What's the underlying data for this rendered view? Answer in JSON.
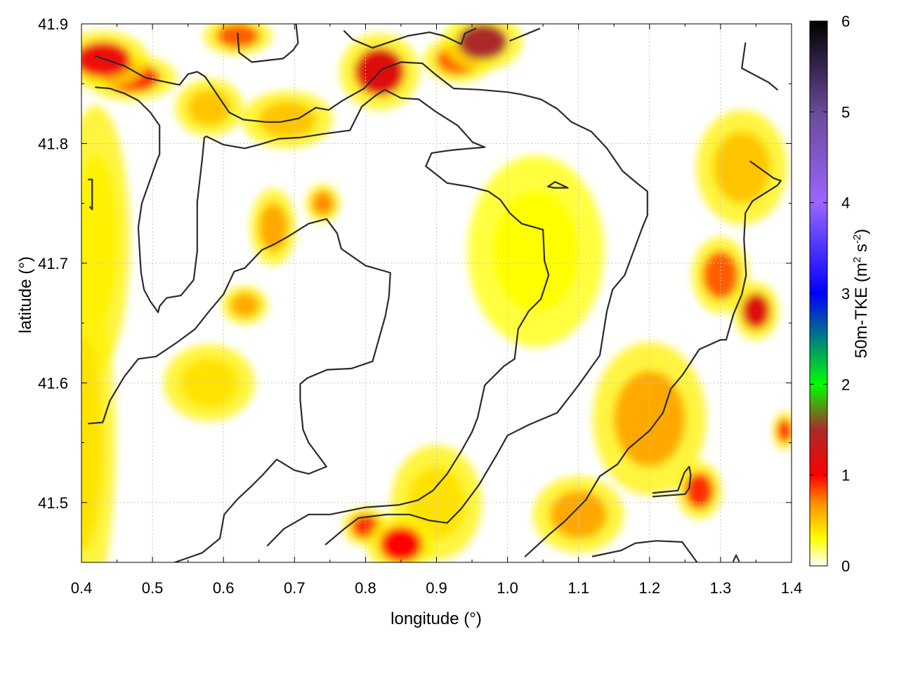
{
  "chart_data": {
    "type": "heatmap",
    "title": "",
    "xlabel": "longitude (°)",
    "ylabel": "latitude (°)",
    "xlim": [
      0.4,
      1.4
    ],
    "ylim": [
      41.45,
      41.9
    ],
    "x_ticks": [
      "0.4",
      "0.5",
      "0.6",
      "0.7",
      "0.8",
      "0.9",
      "1.0",
      "1.1",
      "1.2",
      "1.3",
      "1.4"
    ],
    "y_ticks": [
      "41.5",
      "41.6",
      "41.7",
      "41.8",
      "41.9"
    ],
    "x_tick_values": [
      0.4,
      0.5,
      0.6,
      0.7,
      0.8,
      0.9,
      1.0,
      1.1,
      1.2,
      1.3,
      1.4
    ],
    "y_tick_values": [
      41.5,
      41.6,
      41.7,
      41.8,
      41.9
    ],
    "grid": true,
    "colorbar": {
      "label": "50m-TKE (m2 s-2)",
      "label_text": "50m-TKE (m",
      "label_sup1": "2",
      "label_mid": " s",
      "label_sup2": "-2",
      "label_end": ")",
      "range": [
        0,
        6
      ],
      "ticks": [
        "0",
        "1",
        "2",
        "3",
        "4",
        "5",
        "6"
      ],
      "tick_values": [
        0,
        1,
        2,
        3,
        4,
        5,
        6
      ],
      "colormap": [
        {
          "v": 0.0,
          "color": "#ffffff"
        },
        {
          "v": 0.3,
          "color": "#ffff00"
        },
        {
          "v": 0.7,
          "color": "#ff8c00"
        },
        {
          "v": 1.0,
          "color": "#ff0000"
        },
        {
          "v": 1.5,
          "color": "#aa2a2a"
        },
        {
          "v": 2.0,
          "color": "#00ff00"
        },
        {
          "v": 3.0,
          "color": "#0000ff"
        },
        {
          "v": 4.0,
          "color": "#9966ff"
        },
        {
          "v": 5.0,
          "color": "#6a4a9a"
        },
        {
          "v": 6.0,
          "color": "#000000"
        }
      ]
    },
    "tke_hotspots": [
      {
        "lon": 0.43,
        "lat": 41.87,
        "value": 1.1,
        "rx": 0.04,
        "ry": 0.015
      },
      {
        "lon": 0.47,
        "lat": 41.855,
        "value": 0.9,
        "rx": 0.04,
        "ry": 0.012
      },
      {
        "lon": 0.82,
        "lat": 41.86,
        "value": 1.2,
        "rx": 0.035,
        "ry": 0.02
      },
      {
        "lon": 0.965,
        "lat": 41.885,
        "value": 1.5,
        "rx": 0.035,
        "ry": 0.015
      },
      {
        "lon": 0.93,
        "lat": 41.87,
        "value": 0.8,
        "rx": 0.03,
        "ry": 0.012
      },
      {
        "lon": 0.62,
        "lat": 41.89,
        "value": 0.8,
        "rx": 0.03,
        "ry": 0.01
      },
      {
        "lon": 0.85,
        "lat": 41.465,
        "value": 1.0,
        "rx": 0.03,
        "ry": 0.015
      },
      {
        "lon": 0.8,
        "lat": 41.48,
        "value": 0.9,
        "rx": 0.02,
        "ry": 0.01
      },
      {
        "lon": 1.35,
        "lat": 41.66,
        "value": 1.2,
        "rx": 0.02,
        "ry": 0.015
      },
      {
        "lon": 1.3,
        "lat": 41.69,
        "value": 0.8,
        "rx": 0.025,
        "ry": 0.02
      },
      {
        "lon": 1.27,
        "lat": 41.51,
        "value": 0.9,
        "rx": 0.02,
        "ry": 0.015
      },
      {
        "lon": 1.39,
        "lat": 41.56,
        "value": 1.0,
        "rx": 0.01,
        "ry": 0.01
      },
      {
        "lon": 1.1,
        "lat": 41.49,
        "value": 0.6,
        "rx": 0.04,
        "ry": 0.02
      },
      {
        "lon": 1.2,
        "lat": 41.57,
        "value": 0.6,
        "rx": 0.05,
        "ry": 0.04
      },
      {
        "lon": 0.4,
        "lat": 41.55,
        "value": 0.4,
        "rx": 0.03,
        "ry": 0.09
      },
      {
        "lon": 0.42,
        "lat": 41.72,
        "value": 0.35,
        "rx": 0.03,
        "ry": 0.07
      },
      {
        "lon": 0.67,
        "lat": 41.73,
        "value": 0.6,
        "rx": 0.02,
        "ry": 0.02
      },
      {
        "lon": 0.74,
        "lat": 41.75,
        "value": 0.7,
        "rx": 0.015,
        "ry": 0.01
      },
      {
        "lon": 0.63,
        "lat": 41.665,
        "value": 0.6,
        "rx": 0.02,
        "ry": 0.01
      },
      {
        "lon": 0.69,
        "lat": 41.82,
        "value": 0.5,
        "rx": 0.04,
        "ry": 0.015
      },
      {
        "lon": 1.04,
        "lat": 41.71,
        "value": 0.3,
        "rx": 0.06,
        "ry": 0.05
      },
      {
        "lon": 1.33,
        "lat": 41.78,
        "value": 0.5,
        "rx": 0.04,
        "ry": 0.03
      },
      {
        "lon": 0.58,
        "lat": 41.83,
        "value": 0.5,
        "rx": 0.03,
        "ry": 0.015
      },
      {
        "lon": 0.58,
        "lat": 41.6,
        "value": 0.4,
        "rx": 0.04,
        "ry": 0.02
      },
      {
        "lon": 0.9,
        "lat": 41.5,
        "value": 0.4,
        "rx": 0.04,
        "ry": 0.03
      }
    ],
    "contours": [
      [
        [
          0.42,
          41.873
        ],
        [
          0.46,
          41.865
        ],
        [
          0.49,
          41.855
        ],
        [
          0.538,
          41.849
        ],
        [
          0.55,
          41.858
        ],
        [
          0.563,
          41.86
        ],
        [
          0.574,
          41.856
        ],
        [
          0.608,
          41.826
        ],
        [
          0.628,
          41.82
        ],
        [
          0.66,
          41.818
        ],
        [
          0.68,
          41.818
        ],
        [
          0.706,
          41.821
        ],
        [
          0.73,
          41.83
        ],
        [
          0.748,
          41.828
        ],
        [
          0.768,
          41.836
        ],
        [
          0.798,
          41.846
        ],
        [
          0.823,
          41.862
        ],
        [
          0.85,
          41.868
        ],
        [
          0.88,
          41.867
        ],
        [
          0.9,
          41.857
        ],
        [
          0.924,
          41.846
        ],
        [
          0.96,
          41.845
        ],
        [
          1.0,
          41.843
        ],
        [
          1.02,
          41.841
        ],
        [
          1.047,
          41.837
        ],
        [
          1.07,
          41.829
        ],
        [
          1.09,
          41.818
        ],
        [
          1.118,
          41.81
        ],
        [
          1.14,
          41.796
        ],
        [
          1.162,
          41.777
        ],
        [
          1.18,
          41.768
        ],
        [
          1.197,
          41.76
        ],
        [
          1.197,
          41.74
        ],
        [
          1.19,
          41.73
        ],
        [
          1.165,
          41.69
        ],
        [
          1.148,
          41.678
        ],
        [
          1.14,
          41.66
        ],
        [
          1.13,
          41.623
        ],
        [
          1.1,
          41.598
        ],
        [
          1.07,
          41.575
        ],
        [
          1.03,
          41.565
        ],
        [
          1.0,
          41.556
        ],
        [
          0.985,
          41.54
        ],
        [
          0.96,
          41.515
        ],
        [
          0.935,
          41.495
        ],
        [
          0.915,
          41.483
        ],
        [
          0.89,
          41.485
        ],
        [
          0.862,
          41.49
        ],
        [
          0.83,
          41.49
        ],
        [
          0.79,
          41.487
        ],
        [
          0.77,
          41.478
        ],
        [
          0.744,
          41.465
        ]
      ],
      [
        [
          0.42,
          41.847
        ],
        [
          0.44,
          41.846
        ],
        [
          0.46,
          41.842
        ],
        [
          0.48,
          41.836
        ],
        [
          0.497,
          41.826
        ],
        [
          0.51,
          41.815
        ],
        [
          0.51,
          41.791
        ],
        [
          0.507,
          41.787
        ],
        [
          0.485,
          41.75
        ],
        [
          0.48,
          41.73
        ],
        [
          0.483,
          41.7
        ],
        [
          0.484,
          41.692
        ],
        [
          0.488,
          41.678
        ],
        [
          0.497,
          41.668
        ],
        [
          0.508,
          41.659
        ],
        [
          0.51,
          41.664
        ],
        [
          0.52,
          41.671
        ],
        [
          0.54,
          41.673
        ],
        [
          0.558,
          41.686
        ],
        [
          0.563,
          41.71
        ],
        [
          0.563,
          41.751
        ],
        [
          0.57,
          41.787
        ],
        [
          0.573,
          41.805
        ],
        [
          0.576,
          41.806
        ],
        [
          0.6,
          41.799
        ],
        [
          0.63,
          41.796
        ],
        [
          0.65,
          41.799
        ],
        [
          0.678,
          41.804
        ],
        [
          0.708,
          41.805
        ],
        [
          0.74,
          41.808
        ],
        [
          0.778,
          41.811
        ],
        [
          0.795,
          41.831
        ],
        [
          0.814,
          41.84
        ],
        [
          0.827,
          41.845
        ],
        [
          0.85,
          41.838
        ],
        [
          0.875,
          41.837
        ],
        [
          0.898,
          41.827
        ],
        [
          0.93,
          41.815
        ],
        [
          0.951,
          41.801
        ],
        [
          0.968,
          41.797
        ],
        [
          0.93,
          41.795
        ],
        [
          0.915,
          41.794
        ],
        [
          0.893,
          41.792
        ],
        [
          0.885,
          41.781
        ],
        [
          0.9,
          41.774
        ],
        [
          0.915,
          41.767
        ],
        [
          0.946,
          41.764
        ],
        [
          0.973,
          41.76
        ],
        [
          0.99,
          41.753
        ],
        [
          1.003,
          41.742
        ],
        [
          1.02,
          41.733
        ],
        [
          1.05,
          41.728
        ],
        [
          1.052,
          41.702
        ],
        [
          1.058,
          41.69
        ],
        [
          1.047,
          41.67
        ],
        [
          1.03,
          41.66
        ],
        [
          1.015,
          41.645
        ],
        [
          1.01,
          41.62
        ],
        [
          0.995,
          41.614
        ],
        [
          0.968,
          41.598
        ],
        [
          0.958,
          41.571
        ],
        [
          0.95,
          41.559
        ],
        [
          0.935,
          41.543
        ],
        [
          0.915,
          41.524
        ],
        [
          0.895,
          41.51
        ],
        [
          0.874,
          41.502
        ],
        [
          0.847,
          41.498
        ],
        [
          0.8,
          41.496
        ],
        [
          0.75,
          41.49
        ],
        [
          0.72,
          41.49
        ],
        [
          0.685,
          41.478
        ],
        [
          0.662,
          41.464
        ]
      ],
      [
        [
          0.41,
          41.566
        ],
        [
          0.43,
          41.567
        ],
        [
          0.44,
          41.585
        ],
        [
          0.46,
          41.605
        ],
        [
          0.48,
          41.62
        ],
        [
          0.505,
          41.622
        ],
        [
          0.535,
          41.634
        ],
        [
          0.56,
          41.645
        ],
        [
          0.58,
          41.66
        ],
        [
          0.6,
          41.674
        ],
        [
          0.615,
          41.693
        ],
        [
          0.63,
          41.696
        ],
        [
          0.654,
          41.711
        ],
        [
          0.672,
          41.716
        ],
        [
          0.69,
          41.722
        ],
        [
          0.72,
          41.733
        ],
        [
          0.745,
          41.737
        ],
        [
          0.76,
          41.725
        ],
        [
          0.766,
          41.712
        ],
        [
          0.8,
          41.698
        ],
        [
          0.835,
          41.692
        ],
        [
          0.833,
          41.672
        ],
        [
          0.828,
          41.656
        ],
        [
          0.81,
          41.618
        ],
        [
          0.78,
          41.612
        ],
        [
          0.746,
          41.611
        ],
        [
          0.718,
          41.604
        ],
        [
          0.708,
          41.599
        ],
        [
          0.708,
          41.586
        ],
        [
          0.712,
          41.561
        ],
        [
          0.72,
          41.55
        ],
        [
          0.745,
          41.53
        ],
        [
          0.72,
          41.524
        ],
        [
          0.7,
          41.527
        ],
        [
          0.675,
          41.536
        ],
        [
          0.655,
          41.523
        ],
        [
          0.64,
          41.514
        ],
        [
          0.62,
          41.503
        ],
        [
          0.601,
          41.49
        ],
        [
          0.595,
          41.47
        ],
        [
          0.57,
          41.458
        ],
        [
          0.522,
          41.448
        ]
      ],
      [
        [
          0.412,
          41.747
        ],
        [
          0.415,
          41.745
        ],
        [
          0.415,
          41.77
        ],
        [
          0.41,
          41.77
        ]
      ],
      [
        [
          0.62,
          41.892
        ],
        [
          0.622,
          41.876
        ],
        [
          0.64,
          41.868
        ],
        [
          0.684,
          41.871
        ],
        [
          0.698,
          41.878
        ],
        [
          0.705,
          41.884
        ],
        [
          0.702,
          41.901
        ]
      ],
      [
        [
          0.77,
          41.894
        ],
        [
          0.782,
          41.887
        ],
        [
          0.81,
          41.88
        ],
        [
          0.86,
          41.89
        ],
        [
          0.89,
          41.893
        ],
        [
          0.91,
          41.89
        ],
        [
          0.935,
          41.883
        ],
        [
          0.94,
          41.892
        ],
        [
          0.955,
          41.896
        ]
      ],
      [
        [
          1.004,
          41.886
        ],
        [
          1.045,
          41.896
        ]
      ],
      [
        [
          1.335,
          41.884
        ],
        [
          1.33,
          41.863
        ],
        [
          1.368,
          41.851
        ],
        [
          1.38,
          41.845
        ]
      ],
      [
        [
          1.057,
          41.764
        ],
        [
          1.067,
          41.768
        ],
        [
          1.085,
          41.763
        ],
        [
          1.066,
          41.763
        ],
        [
          1.057,
          41.764
        ]
      ],
      [
        [
          1.342,
          41.785
        ],
        [
          1.375,
          41.771
        ],
        [
          1.385,
          41.769
        ],
        [
          1.38,
          41.765
        ],
        [
          1.345,
          41.752
        ],
        [
          1.335,
          41.742
        ],
        [
          1.333,
          41.72
        ],
        [
          1.336,
          41.69
        ],
        [
          1.33,
          41.674
        ],
        [
          1.318,
          41.657
        ],
        [
          1.308,
          41.636
        ],
        [
          1.3,
          41.636
        ],
        [
          1.27,
          41.628
        ],
        [
          1.247,
          41.607
        ],
        [
          1.23,
          41.595
        ],
        [
          1.219,
          41.575
        ],
        [
          1.2,
          41.56
        ],
        [
          1.17,
          41.545
        ],
        [
          1.155,
          41.532
        ],
        [
          1.13,
          41.522
        ],
        [
          1.11,
          41.502
        ],
        [
          1.08,
          41.484
        ],
        [
          1.06,
          41.474
        ],
        [
          1.025,
          41.455
        ]
      ],
      [
        [
          1.12,
          41.455
        ],
        [
          1.16,
          41.46
        ],
        [
          1.18,
          41.466
        ],
        [
          1.21,
          41.468
        ],
        [
          1.246,
          41.467
        ],
        [
          1.267,
          41.45
        ]
      ],
      [
        [
          1.205,
          41.505
        ],
        [
          1.25,
          41.507
        ],
        [
          1.256,
          41.512
        ],
        [
          1.258,
          41.523
        ],
        [
          1.256,
          41.53
        ],
        [
          1.249,
          41.525
        ],
        [
          1.24,
          41.51
        ],
        [
          1.205,
          41.508
        ]
      ],
      [
        [
          1.318,
          41.451
        ],
        [
          1.322,
          41.456
        ],
        [
          1.326,
          41.451
        ]
      ]
    ]
  }
}
